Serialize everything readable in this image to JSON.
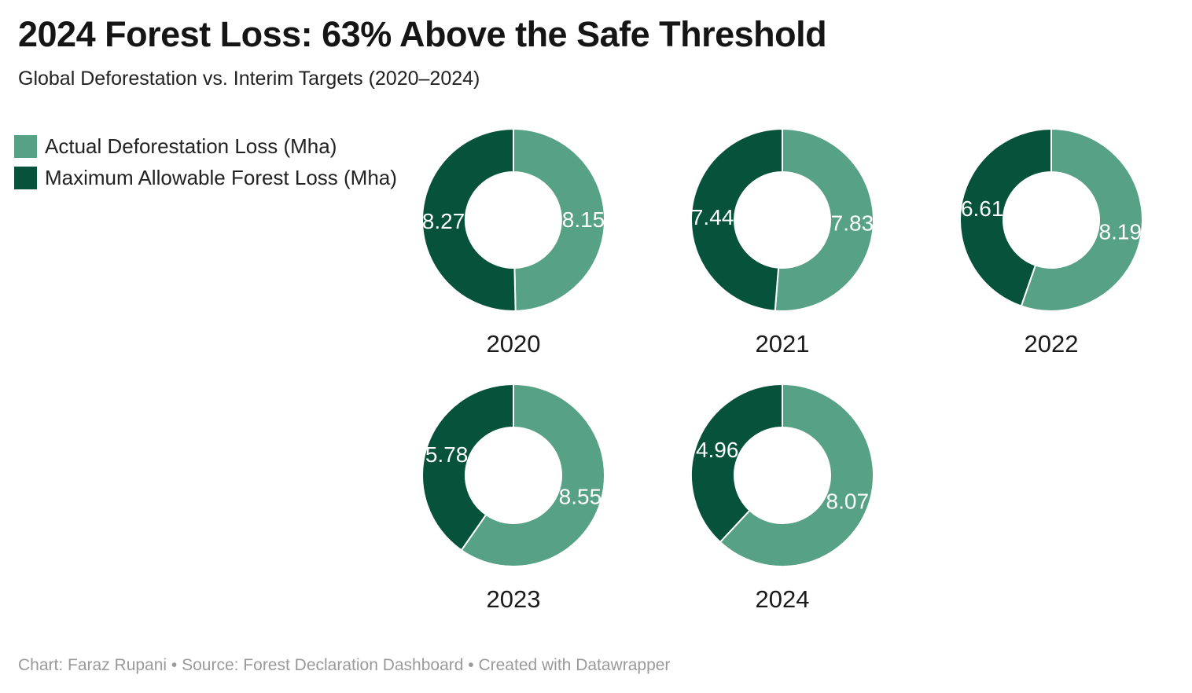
{
  "header": {
    "title": "2024 Forest Loss: 63% Above the Safe Threshold",
    "subtitle": "Global Deforestation vs. Interim Targets (2020–2024)"
  },
  "legend": {
    "items": [
      {
        "label": "Actual Deforestation Loss (Mha)",
        "color": "#57a186"
      },
      {
        "label": "Maximum Allowable Forest Loss (Mha)",
        "color": "#06523a"
      }
    ]
  },
  "colors": {
    "actual": "#57a186",
    "max": "#06523a",
    "slice_divider": "#ffffff",
    "value_label_text": "#ffffff",
    "background": "#ffffff"
  },
  "chart_data": {
    "type": "pie",
    "subtype": "donut-small-multiples",
    "title": "2024 Forest Loss: 63% Above the Safe Threshold",
    "subtitle": "Global Deforestation vs. Interim Targets (2020–2024)",
    "legend_position": "top-left",
    "legend": [
      "Actual Deforestation Loss (Mha)",
      "Maximum Allowable Forest Loss (Mha)"
    ],
    "categories": [
      "2020",
      "2021",
      "2022",
      "2023",
      "2024"
    ],
    "series": [
      {
        "name": "Actual Deforestation Loss (Mha)",
        "color": "#57a186",
        "values": [
          8.15,
          7.83,
          8.19,
          8.55,
          8.07
        ]
      },
      {
        "name": "Maximum Allowable Forest Loss (Mha)",
        "color": "#06523a",
        "values": [
          8.27,
          7.44,
          6.61,
          5.78,
          4.96
        ]
      }
    ],
    "donuts": [
      {
        "year": "2020",
        "actual": 8.15,
        "max": 8.27
      },
      {
        "year": "2021",
        "actual": 7.83,
        "max": 7.44
      },
      {
        "year": "2022",
        "actual": 8.19,
        "max": 6.61
      },
      {
        "year": "2023",
        "actual": 8.55,
        "max": 5.78
      },
      {
        "year": "2024",
        "actual": 8.07,
        "max": 4.96
      }
    ],
    "value_label_format": "0.00",
    "start_angle_deg": 0,
    "direction": "clockwise"
  },
  "footer": {
    "text": "Chart: Faraz Rupani • Source: Forest Declaration Dashboard • Created with Datawrapper"
  }
}
